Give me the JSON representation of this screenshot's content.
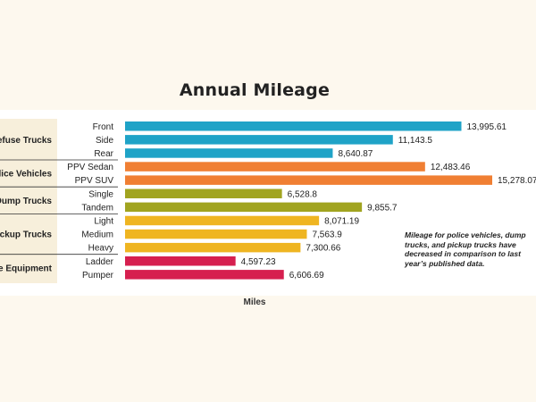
{
  "chart_data": {
    "type": "bar",
    "orientation": "horizontal",
    "title": "Annual Mileage",
    "xlabel": "Miles",
    "ylabel": "",
    "xlim": [
      0,
      15300
    ],
    "grid": false,
    "groups": [
      {
        "name": "Refuse Trucks",
        "color": "#1fa3c7",
        "items": [
          {
            "category": "Front",
            "value": 13995.61,
            "label": "13,995.61"
          },
          {
            "category": "Side",
            "value": 11143.5,
            "label": "11,143.5"
          },
          {
            "category": "Rear",
            "value": 8640.87,
            "label": "8,640.87"
          }
        ]
      },
      {
        "name": "Police Vehicles",
        "color": "#f07f33",
        "items": [
          {
            "category": "PPV Sedan",
            "value": 12483.46,
            "label": "12,483.46"
          },
          {
            "category": "PPV SUV",
            "value": 15278.07,
            "label": "15,278.07"
          }
        ]
      },
      {
        "name": "Dump Trucks",
        "color": "#a1a420",
        "items": [
          {
            "category": "Single",
            "value": 6528.8,
            "label": "6,528.8"
          },
          {
            "category": "Tandem",
            "value": 9855.7,
            "label": "9,855.7"
          }
        ]
      },
      {
        "name": "Pickup Trucks",
        "color": "#efb521",
        "items": [
          {
            "category": "Light",
            "value": 8071.19,
            "label": "8,071.19"
          },
          {
            "category": "Medium",
            "value": 7563.9,
            "label": "7,563.9"
          },
          {
            "category": "Heavy",
            "value": 7300.66,
            "label": "7,300.66"
          }
        ]
      },
      {
        "name": "Fire Equipment",
        "color": "#d61f4f",
        "items": [
          {
            "category": "Ladder",
            "value": 4597.23,
            "label": "4,597.23"
          },
          {
            "category": "Pumper",
            "value": 6606.69,
            "label": "6,606.69"
          }
        ]
      }
    ],
    "annotation": "Mileage for police vehicles, dump trucks, and pickup trucks have decreased in comparison to last year’s published data."
  }
}
